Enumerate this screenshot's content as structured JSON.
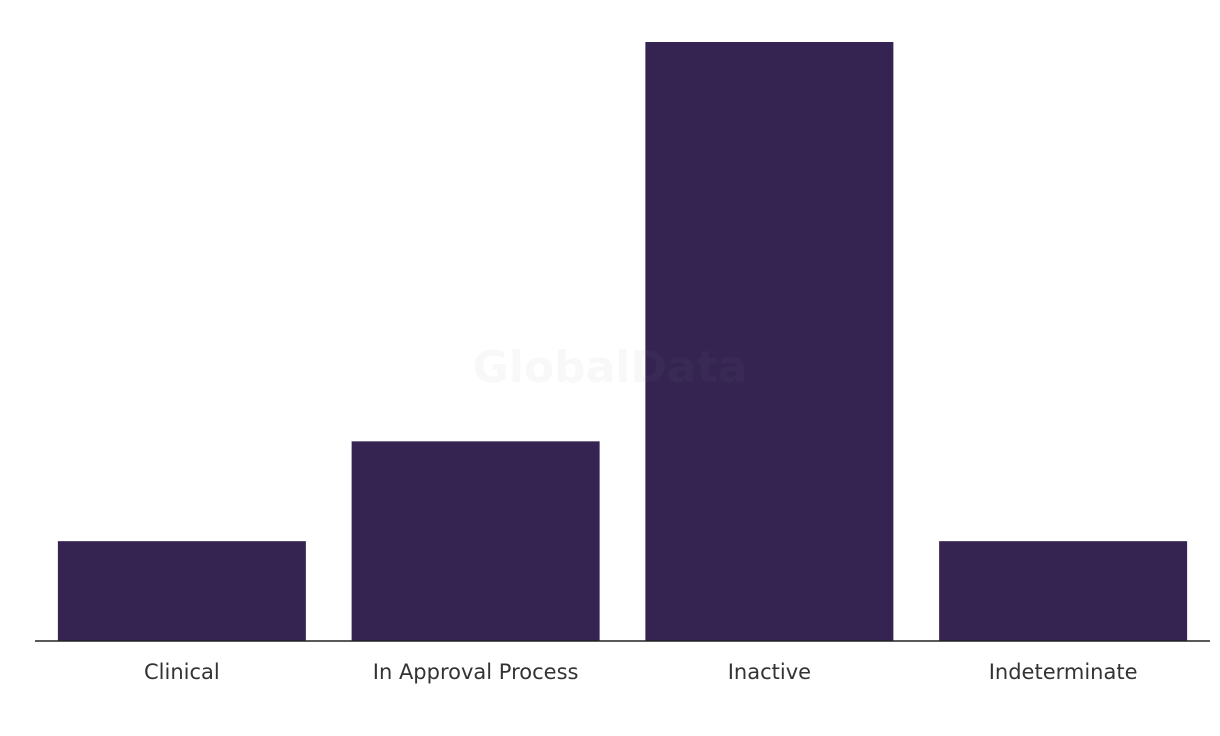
{
  "chart_data": {
    "type": "bar",
    "watermark": "GlobalData",
    "categories": [
      "Clinical",
      "In Approval Process",
      "Inactive",
      "Indeterminate"
    ],
    "values": [
      1,
      2,
      6,
      1
    ],
    "color": "#352452"
  }
}
